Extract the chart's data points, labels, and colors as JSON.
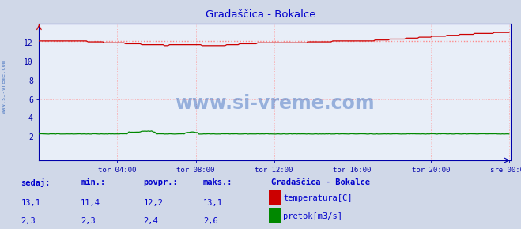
{
  "title": "Gradaščica - Bokalce",
  "title_color": "#0000cc",
  "bg_color": "#d0d8e8",
  "plot_bg_color": "#e8eef8",
  "grid_color": "#ff9999",
  "ylabel_color": "#0000aa",
  "xlabel_color": "#0000aa",
  "axis_color": "#0000aa",
  "temp_color": "#cc0000",
  "flow_color": "#008800",
  "avg_line_color": "#ff8888",
  "watermark_color": "#3366bb",
  "x_tick_labels": [
    "tor 04:00",
    "tor 08:00",
    "tor 12:00",
    "tor 16:00",
    "tor 20:00",
    "sre 00:00"
  ],
  "y_ticks": [
    2,
    4,
    6,
    8,
    10,
    12
  ],
  "y_lim": [
    -0.5,
    14.0
  ],
  "x_lim": [
    0,
    289
  ],
  "temp_avg": 12.2,
  "station_name": "Gradaščica - Bokalce",
  "legend_temp": "temperatura[C]",
  "legend_flow": "pretok[m3/s]",
  "watermark": "www.si-vreme.com",
  "sidebar_text": "www.si-vreme.com",
  "col_headers": [
    "sedaj:",
    "min.:",
    "povpr.:",
    "maks.:"
  ],
  "temp_vals": [
    "13,1",
    "11,4",
    "12,2",
    "13,1"
  ],
  "flow_vals": [
    "2,3",
    "2,3",
    "2,4",
    "2,6"
  ]
}
